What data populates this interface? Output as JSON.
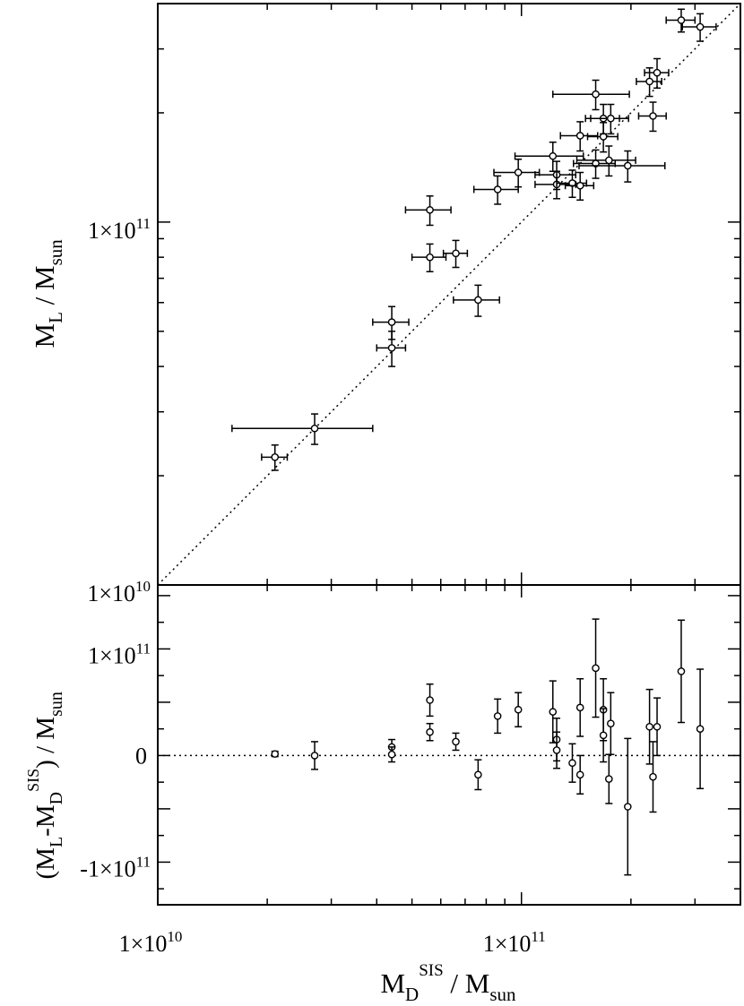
{
  "chart_data": [
    {
      "type": "scatter",
      "panel": "top",
      "xscale": "log",
      "yscale": "log",
      "xlim": [
        10000000000.0,
        400000000000.0
      ],
      "ylim": [
        10000000000.0,
        400000000000.0
      ],
      "xtick_labels": [
        "1×10",
        "1×10"
      ],
      "xtick_exponents": [
        "10",
        "11"
      ],
      "ytick_labels": [
        "1×10",
        "1×10"
      ],
      "ytick_exponents": [
        "10",
        "11"
      ],
      "ylabel": {
        "main": "M",
        "sub": "L",
        "rest": " / M",
        "sub2": "sun"
      },
      "reference_line": "y = x (dotted)",
      "points": [
        {
          "x": 21000000000.0,
          "y": 22500000000.0,
          "xerr": [
            1700000000.0,
            1700000000.0
          ],
          "yerr": [
            1800000000.0,
            1800000000.0
          ]
        },
        {
          "x": 27000000000.0,
          "y": 27000000000.0,
          "xerr": [
            11000000000.0,
            12000000000.0
          ],
          "yerr": [
            2600000000.0,
            2600000000.0
          ]
        },
        {
          "x": 44000000000.0,
          "y": 45000000000.0,
          "xerr": [
            4000000000.0,
            4000000000.0
          ],
          "yerr": [
            5000000000.0,
            5000000000.0
          ]
        },
        {
          "x": 44000000000.0,
          "y": 53000000000.0,
          "xerr": [
            5000000000.0,
            5000000000.0
          ],
          "yerr": [
            5500000000.0,
            5500000000.0
          ]
        },
        {
          "x": 56000000000.0,
          "y": 80000000000.0,
          "xerr": [
            6000000000.0,
            6000000000.0
          ],
          "yerr": [
            7000000000.0,
            7000000000.0
          ]
        },
        {
          "x": 56000000000.0,
          "y": 108000000000.0,
          "xerr": [
            8000000000.0,
            8000000000.0
          ],
          "yerr": [
            10000000000.0,
            10000000000.0
          ]
        },
        {
          "x": 66000000000.0,
          "y": 82000000000.0,
          "xerr": [
            5000000000.0,
            5000000000.0
          ],
          "yerr": [
            7000000000.0,
            7000000000.0
          ]
        },
        {
          "x": 76000000000.0,
          "y": 61000000000.0,
          "xerr": [
            11000000000.0,
            11000000000.0
          ],
          "yerr": [
            6000000000.0,
            6000000000.0
          ]
        },
        {
          "x": 86000000000.0,
          "y": 123000000000.0,
          "xerr": [
            12000000000.0,
            12000000000.0
          ],
          "yerr": [
            11000000000.0,
            11000000000.0
          ]
        },
        {
          "x": 98000000000.0,
          "y": 137000000000.0,
          "xerr": [
            14000000000.0,
            14000000000.0
          ],
          "yerr": [
            12000000000.0,
            12000000000.0
          ]
        },
        {
          "x": 122000000000.0,
          "y": 152000000000.0,
          "xerr": [
            26000000000.0,
            26000000000.0
          ],
          "yerr": [
            14000000000.0,
            14000000000.0
          ]
        },
        {
          "x": 125000000000.0,
          "y": 135000000000.0,
          "xerr": [
            16000000000.0,
            16000000000.0
          ],
          "yerr": [
            12000000000.0,
            12000000000.0
          ]
        },
        {
          "x": 125000000000.0,
          "y": 127000000000.0,
          "xerr": [
            16000000000.0,
            16000000000.0
          ],
          "yerr": [
            11000000000.0,
            11000000000.0
          ]
        },
        {
          "x": 138000000000.0,
          "y": 128000000000.0,
          "xerr": [
            13000000000.0,
            13000000000.0
          ],
          "yerr": [
            11000000000.0,
            11000000000.0
          ]
        },
        {
          "x": 145000000000.0,
          "y": 126000000000.0,
          "xerr": [
            13000000000.0,
            13000000000.0
          ],
          "yerr": [
            11000000000.0,
            11000000000.0
          ]
        },
        {
          "x": 145000000000.0,
          "y": 173000000000.0,
          "xerr": [
            17000000000.0,
            17000000000.0
          ],
          "yerr": [
            16000000000.0,
            16000000000.0
          ]
        },
        {
          "x": 160000000000.0,
          "y": 225000000000.0,
          "xerr": [
            38000000000.0,
            38000000000.0
          ],
          "yerr": [
            21000000000.0,
            21000000000.0
          ]
        },
        {
          "x": 160000000000.0,
          "y": 145000000000.0,
          "xerr": [
            21000000000.0,
            21000000000.0
          ],
          "yerr": [
            13000000000.0,
            13000000000.0
          ]
        },
        {
          "x": 168000000000.0,
          "y": 172000000000.0,
          "xerr": [
            16000000000.0,
            16000000000.0
          ],
          "yerr": [
            16000000000.0,
            16000000000.0
          ]
        },
        {
          "x": 168000000000.0,
          "y": 193000000000.0,
          "xerr": [
            18000000000.0,
            18000000000.0
          ],
          "yerr": [
            18000000000.0,
            18000000000.0
          ]
        },
        {
          "x": 176000000000.0,
          "y": 193000000000.0,
          "xerr": [
            21000000000.0,
            21000000000.0
          ],
          "yerr": [
            18000000000.0,
            18000000000.0
          ]
        },
        {
          "x": 174000000000.0,
          "y": 148000000000.0,
          "xerr": [
            32000000000.0,
            32000000000.0
          ],
          "yerr": [
            14000000000.0,
            14000000000.0
          ]
        },
        {
          "x": 196000000000.0,
          "y": 143000000000.0,
          "xerr": [
            52000000000.0,
            52000000000.0
          ],
          "yerr": [
            14000000000.0,
            14000000000.0
          ]
        },
        {
          "x": 225000000000.0,
          "y": 244000000000.0,
          "xerr": [
            18000000000.0,
            18000000000.0
          ],
          "yerr": [
            22000000000.0,
            22000000000.0
          ]
        },
        {
          "x": 230000000000.0,
          "y": 196000000000.0,
          "xerr": [
            20000000000.0,
            20000000000.0
          ],
          "yerr": [
            18000000000.0,
            18000000000.0
          ]
        },
        {
          "x": 236000000000.0,
          "y": 258000000000.0,
          "xerr": [
            18000000000.0,
            18000000000.0
          ],
          "yerr": [
            24000000000.0,
            24000000000.0
          ]
        },
        {
          "x": 275000000000.0,
          "y": 360000000000.0,
          "xerr": [
            25000000000.0,
            25000000000.0
          ],
          "yerr": [
            26000000000.0,
            26000000000.0
          ]
        },
        {
          "x": 310000000000.0,
          "y": 345000000000.0,
          "xerr": [
            33000000000.0,
            33000000000.0
          ],
          "yerr": [
            30000000000.0,
            30000000000.0
          ]
        }
      ]
    },
    {
      "type": "scatter",
      "panel": "bottom",
      "xscale": "log",
      "yscale": "linear",
      "xlim": [
        10000000000.0,
        400000000000.0
      ],
      "ylim": [
        -140000000000.0,
        160000000000.0
      ],
      "xtick_labels": [
        "1×10",
        "1×10"
      ],
      "xtick_exponents": [
        "10",
        "11"
      ],
      "ytick_labels": [
        "-1×10",
        "0",
        "1×10"
      ],
      "ytick_exponents": [
        "11",
        "",
        "11"
      ],
      "xlabel": {
        "main": "M",
        "sub": "D",
        "sup": "SIS",
        "rest": " / M",
        "sub2": "sun"
      },
      "ylabel": "(M_L - M_D^SIS) / M_sun",
      "ylabel_parts": {
        "open": "(M",
        "sub_l": "L",
        "minus": "-M",
        "sub_d": "D",
        "sup": "SIS",
        "close": ") / M",
        "sub_sun": "sun"
      },
      "reference_line": "y = 0 (dotted)",
      "points": [
        {
          "x": 21000000000.0,
          "y": 1500000000.0,
          "yerr": [
            2500000000.0,
            2500000000.0
          ]
        },
        {
          "x": 27000000000.0,
          "y": 0,
          "yerr": [
            13000000000.0,
            13000000000.0
          ]
        },
        {
          "x": 44000000000.0,
          "y": 8000000000.0,
          "yerr": [
            7000000000.0,
            7000000000.0
          ]
        },
        {
          "x": 44000000000.0,
          "y": 1000000000.0,
          "yerr": [
            7000000000.0,
            7000000000.0
          ]
        },
        {
          "x": 56000000000.0,
          "y": 52000000000.0,
          "yerr": [
            15000000000.0,
            15000000000.0
          ]
        },
        {
          "x": 56000000000.0,
          "y": 22000000000.0,
          "yerr": [
            8000000000.0,
            8000000000.0
          ]
        },
        {
          "x": 66000000000.0,
          "y": 13000000000.0,
          "yerr": [
            8000000000.0,
            8000000000.0
          ]
        },
        {
          "x": 76000000000.0,
          "y": -18000000000.0,
          "yerr": [
            14000000000.0,
            14000000000.0
          ]
        },
        {
          "x": 86000000000.0,
          "y": 37000000000.0,
          "yerr": [
            16000000000.0,
            16000000000.0
          ]
        },
        {
          "x": 98000000000.0,
          "y": 43000000000.0,
          "yerr": [
            16000000000.0,
            16000000000.0
          ]
        },
        {
          "x": 122000000000.0,
          "y": 41000000000.0,
          "yerr": [
            29000000000.0,
            29000000000.0
          ]
        },
        {
          "x": 125000000000.0,
          "y": 15000000000.0,
          "yerr": [
            20000000000.0,
            20000000000.0
          ]
        },
        {
          "x": 125000000000.0,
          "y": 5000000000.0,
          "yerr": [
            17000000000.0,
            17000000000.0
          ]
        },
        {
          "x": 138000000000.0,
          "y": -7000000000.0,
          "yerr": [
            18000000000.0,
            18000000000.0
          ]
        },
        {
          "x": 145000000000.0,
          "y": -18000000000.0,
          "yerr": [
            18000000000.0,
            18000000000.0
          ]
        },
        {
          "x": 145000000000.0,
          "y": 45000000000.0,
          "yerr": [
            27000000000.0,
            27000000000.0
          ]
        },
        {
          "x": 160000000000.0,
          "y": 82000000000.0,
          "yerr": [
            46000000000.0,
            46000000000.0
          ]
        },
        {
          "x": 168000000000.0,
          "y": 43000000000.0,
          "yerr": [
            29000000000.0,
            29000000000.0
          ]
        },
        {
          "x": 168000000000.0,
          "y": 19000000000.0,
          "yerr": [
            25000000000.0,
            25000000000.0
          ]
        },
        {
          "x": 174000000000.0,
          "y": -22000000000.0,
          "yerr": [
            23000000000.0,
            23000000000.0
          ]
        },
        {
          "x": 176000000000.0,
          "y": 30000000000.0,
          "yerr": [
            29000000000.0,
            29000000000.0
          ]
        },
        {
          "x": 196000000000.0,
          "y": -48000000000.0,
          "yerr": [
            64000000000.0,
            64000000000.0
          ]
        },
        {
          "x": 225000000000.0,
          "y": 27000000000.0,
          "yerr": [
            35000000000.0,
            35000000000.0
          ]
        },
        {
          "x": 230000000000.0,
          "y": -20000000000.0,
          "yerr": [
            33000000000.0,
            33000000000.0
          ]
        },
        {
          "x": 236000000000.0,
          "y": 27000000000.0,
          "yerr": [
            27000000000.0,
            27000000000.0
          ]
        },
        {
          "x": 275000000000.0,
          "y": 79000000000.0,
          "yerr": [
            48000000000.0,
            48000000000.0
          ]
        },
        {
          "x": 310000000000.0,
          "y": 25000000000.0,
          "yerr": [
            56000000000.0,
            56000000000.0
          ]
        }
      ]
    }
  ]
}
